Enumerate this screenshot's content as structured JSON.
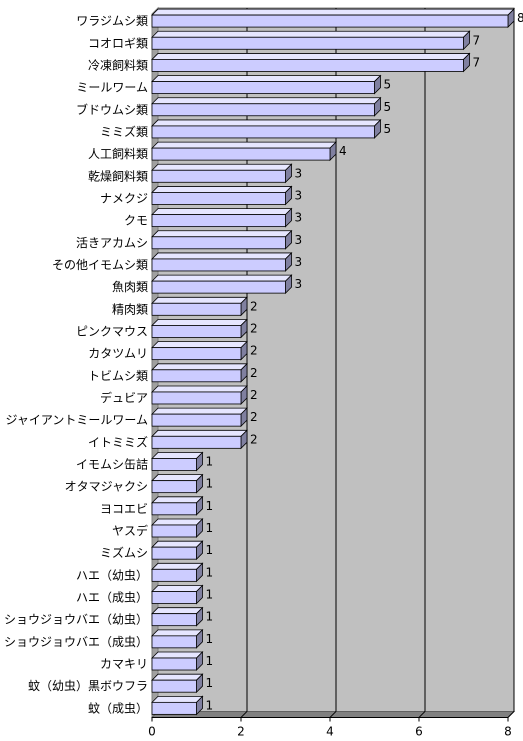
{
  "chart_data": {
    "type": "bar",
    "orientation": "horizontal",
    "style": "3d",
    "title": "",
    "xlabel": "",
    "ylabel": "",
    "xlim": [
      0,
      8
    ],
    "xticks": [
      0,
      2,
      4,
      6,
      8
    ],
    "grid": true,
    "bar_color": "#ccccff",
    "wall_color": "#c0c0c0",
    "categories": [
      "ワラジムシ類",
      "コオロギ類",
      "冷凍飼料類",
      "ミールワーム",
      "ブドウムシ類",
      "ミミズ類",
      "人工飼料類",
      "乾燥飼料類",
      "ナメクジ",
      "クモ",
      "活きアカムシ",
      "その他イモムシ類",
      "魚肉類",
      "精肉類",
      "ピンクマウス",
      "カタツムリ",
      "トビムシ類",
      "デュビア",
      "ジャイアントミールワーム",
      "イトミミズ",
      "イモムシ缶詰",
      "オタマジャクシ",
      "ヨコエビ",
      "ヤスデ",
      "ミズムシ",
      "ハエ（幼虫）",
      "ハエ（成虫）",
      "ショウジョウバエ（幼虫）",
      "ショウジョウバエ（成虫）",
      "カマキリ",
      "蚊（幼虫）黒ボウフラ",
      "蚊（成虫）"
    ],
    "values": [
      8,
      7,
      7,
      5,
      5,
      5,
      4,
      3,
      3,
      3,
      3,
      3,
      3,
      2,
      2,
      2,
      2,
      2,
      2,
      2,
      1,
      1,
      1,
      1,
      1,
      1,
      1,
      1,
      1,
      1,
      1,
      1
    ]
  }
}
